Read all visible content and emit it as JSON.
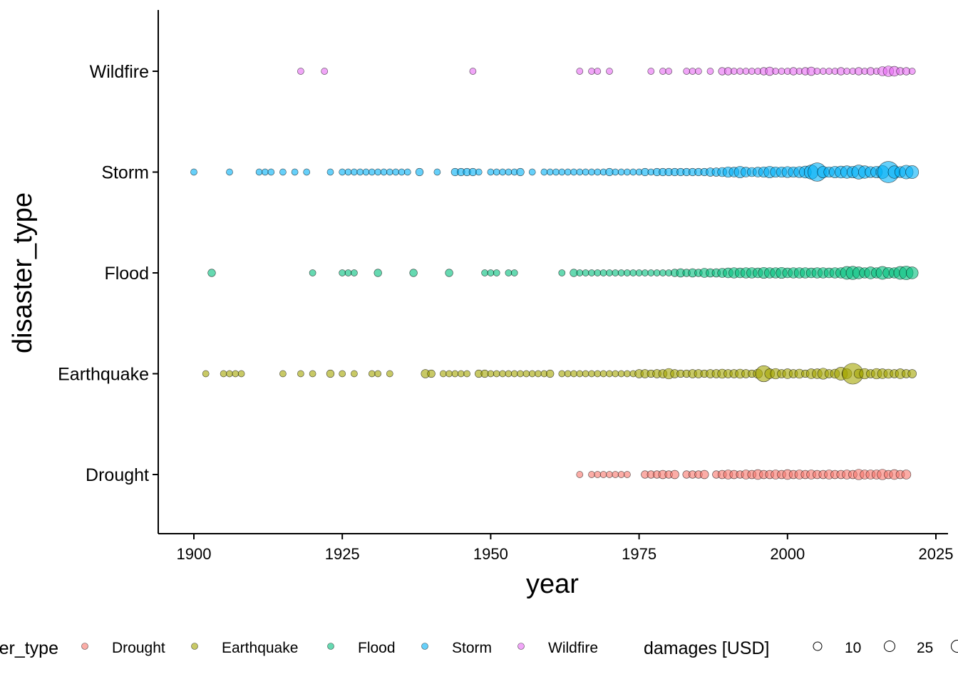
{
  "chart_data": {
    "type": "scatter",
    "title": "",
    "xlabel": "year",
    "ylabel": "disaster_type",
    "xlim": [
      1894,
      2028
    ],
    "xticks": [
      1900,
      1925,
      1950,
      1975,
      2000,
      2025
    ],
    "categories": [
      "Drought",
      "Earthquake",
      "Flood",
      "Storm",
      "Wildfire"
    ],
    "colors": {
      "Drought": "#F8766D",
      "Earthquake": "#A3A500",
      "Flood": "#00BF7D",
      "Storm": "#00B0F6",
      "Wildfire": "#E76BF3"
    },
    "grid": false,
    "legend_position": "bottom",
    "legend": {
      "color_title": "disaster_type",
      "size_title": "damages [USD]",
      "size_values": [
        "10",
        "25"
      ]
    },
    "series": [
      {
        "name": "Drought",
        "x": [
          1965,
          1967,
          1968,
          1969,
          1970,
          1971,
          1972,
          1973,
          1976,
          1977,
          1978,
          1979,
          1980,
          1981,
          1983,
          1984,
          1985,
          1986,
          1988,
          1989,
          1990,
          1991,
          1992,
          1993,
          1994,
          1995,
          1996,
          1997,
          1998,
          1999,
          2000,
          2001,
          2002,
          2003,
          2004,
          2005,
          2006,
          2007,
          2008,
          2009,
          2010,
          2011,
          2012,
          2013,
          2014,
          2015,
          2016,
          2017,
          2018,
          2019,
          2020
        ],
        "damages": [
          1,
          1,
          1,
          1,
          1,
          1,
          1,
          1,
          2,
          2,
          2,
          3,
          2,
          3,
          2,
          2,
          2,
          3,
          2,
          3,
          4,
          3,
          2,
          4,
          3,
          5,
          3,
          3,
          4,
          3,
          5,
          3,
          4,
          3,
          4,
          3,
          3,
          4,
          3,
          3,
          4,
          3,
          6,
          4,
          4,
          4,
          6,
          3,
          5,
          3,
          4
        ]
      },
      {
        "name": "Earthquake",
        "x": [
          1902,
          1905,
          1906,
          1907,
          1908,
          1915,
          1918,
          1920,
          1923,
          1925,
          1927,
          1930,
          1931,
          1933,
          1939,
          1940,
          1942,
          1943,
          1944,
          1945,
          1946,
          1948,
          1949,
          1950,
          1951,
          1952,
          1953,
          1954,
          1955,
          1956,
          1957,
          1958,
          1959,
          1960,
          1962,
          1963,
          1964,
          1965,
          1966,
          1967,
          1968,
          1969,
          1970,
          1971,
          1972,
          1973,
          1974,
          1975,
          1976,
          1977,
          1978,
          1979,
          1980,
          1981,
          1982,
          1983,
          1984,
          1985,
          1986,
          1987,
          1988,
          1989,
          1990,
          1991,
          1992,
          1993,
          1994,
          1995,
          1996,
          1997,
          1998,
          1999,
          2000,
          2001,
          2002,
          2003,
          2004,
          2005,
          2006,
          2007,
          2008,
          2009,
          2010,
          2011,
          2012,
          2013,
          2014,
          2015,
          2016,
          2017,
          2018,
          2019,
          2020,
          2021
        ],
        "damages": [
          1,
          1,
          1,
          1,
          1,
          1,
          1,
          1,
          2,
          1,
          1,
          1,
          1,
          1,
          3,
          2,
          1,
          1,
          1,
          1,
          1,
          2,
          2,
          1,
          1,
          1,
          1,
          1,
          1,
          1,
          1,
          1,
          1,
          2,
          1,
          1,
          1,
          1,
          1,
          1,
          1,
          1,
          1,
          1,
          1,
          1,
          1,
          3,
          3,
          2,
          3,
          3,
          6,
          3,
          2,
          2,
          3,
          3,
          2,
          3,
          3,
          4,
          3,
          3,
          4,
          3,
          2,
          4,
          20,
          5,
          6,
          3,
          5,
          3,
          4,
          2,
          5,
          5,
          7,
          3,
          4,
          11,
          5,
          38,
          4,
          6,
          3,
          6,
          5,
          4,
          3,
          5,
          3,
          3
        ]
      },
      {
        "name": "Flood",
        "x": [
          1903,
          1920,
          1925,
          1926,
          1927,
          1931,
          1937,
          1943,
          1949,
          1950,
          1951,
          1953,
          1954,
          1962,
          1964,
          1965,
          1966,
          1967,
          1968,
          1969,
          1970,
          1971,
          1972,
          1973,
          1974,
          1975,
          1976,
          1977,
          1978,
          1979,
          1980,
          1981,
          1982,
          1983,
          1984,
          1985,
          1986,
          1987,
          1988,
          1989,
          1990,
          1991,
          1992,
          1993,
          1994,
          1995,
          1996,
          1997,
          1998,
          1999,
          2000,
          2001,
          2002,
          2003,
          2004,
          2005,
          2006,
          2007,
          2008,
          2009,
          2010,
          2011,
          2012,
          2013,
          2014,
          2015,
          2016,
          2017,
          2018,
          2019,
          2020,
          2021
        ],
        "damages": [
          2,
          1,
          1,
          1,
          1,
          2,
          2,
          2,
          1,
          1,
          1,
          1,
          1,
          1,
          2,
          1,
          1,
          1,
          1,
          1,
          1,
          1,
          1,
          1,
          1,
          1,
          1,
          1,
          1,
          1,
          1,
          2,
          3,
          2,
          3,
          2,
          4,
          3,
          3,
          4,
          5,
          6,
          5,
          6,
          6,
          5,
          7,
          6,
          6,
          7,
          5,
          6,
          6,
          6,
          5,
          6,
          6,
          5,
          6,
          6,
          11,
          12,
          9,
          6,
          9,
          6,
          11,
          7,
          6,
          11,
          13,
          9
        ]
      },
      {
        "name": "Storm",
        "x": [
          1900,
          1906,
          1911,
          1912,
          1913,
          1915,
          1917,
          1919,
          1923,
          1925,
          1926,
          1927,
          1928,
          1929,
          1930,
          1931,
          1932,
          1933,
          1934,
          1935,
          1936,
          1938,
          1941,
          1944,
          1945,
          1946,
          1947,
          1948,
          1950,
          1951,
          1952,
          1953,
          1954,
          1955,
          1957,
          1959,
          1960,
          1961,
          1962,
          1963,
          1964,
          1965,
          1966,
          1967,
          1968,
          1969,
          1970,
          1971,
          1972,
          1973,
          1974,
          1975,
          1976,
          1977,
          1978,
          1979,
          1980,
          1981,
          1982,
          1983,
          1984,
          1985,
          1986,
          1987,
          1988,
          1989,
          1990,
          1991,
          1992,
          1993,
          1994,
          1995,
          1996,
          1997,
          1998,
          1999,
          2000,
          2001,
          2002,
          2003,
          2004,
          2005,
          2006,
          2007,
          2008,
          2009,
          2010,
          2011,
          2012,
          2013,
          2014,
          2015,
          2016,
          2017,
          2018,
          2019,
          2020,
          2021
        ],
        "damages": [
          1,
          1,
          1,
          1,
          1,
          1,
          1,
          1,
          1,
          1,
          1,
          1,
          1,
          1,
          1,
          1,
          1,
          1,
          1,
          1,
          1,
          2,
          1,
          2,
          2,
          2,
          2,
          1,
          1,
          1,
          1,
          1,
          1,
          2,
          1,
          1,
          1,
          1,
          1,
          1,
          1,
          1,
          1,
          1,
          1,
          1,
          2,
          1,
          1,
          1,
          1,
          1,
          2,
          1,
          2,
          2,
          2,
          2,
          2,
          2,
          2,
          2,
          2,
          3,
          3,
          4,
          6,
          5,
          8,
          5,
          4,
          5,
          6,
          8,
          6,
          6,
          7,
          6,
          7,
          9,
          14,
          28,
          8,
          6,
          8,
          9,
          10,
          8,
          14,
          10,
          7,
          8,
          11,
          40,
          10,
          7,
          13,
          11
        ]
      },
      {
        "name": "Wildfire",
        "x": [
          1918,
          1922,
          1947,
          1965,
          1967,
          1968,
          1970,
          1977,
          1979,
          1980,
          1983,
          1984,
          1985,
          1987,
          1989,
          1990,
          1991,
          1992,
          1993,
          1994,
          1995,
          1996,
          1997,
          1998,
          1999,
          2000,
          2001,
          2002,
          2003,
          2004,
          2005,
          2006,
          2007,
          2008,
          2009,
          2010,
          2011,
          2012,
          2013,
          2014,
          2015,
          2016,
          2017,
          2018,
          2019,
          2020,
          2021
        ],
        "damages": [
          1,
          1,
          1,
          1,
          1,
          1,
          1,
          1,
          1,
          1,
          1,
          1,
          1,
          1,
          2,
          2,
          1,
          1,
          1,
          1,
          1,
          2,
          3,
          1,
          1,
          1,
          2,
          1,
          2,
          3,
          1,
          1,
          1,
          1,
          2,
          1,
          1,
          2,
          1,
          2,
          1,
          4,
          6,
          5,
          2,
          2,
          1
        ]
      }
    ]
  }
}
